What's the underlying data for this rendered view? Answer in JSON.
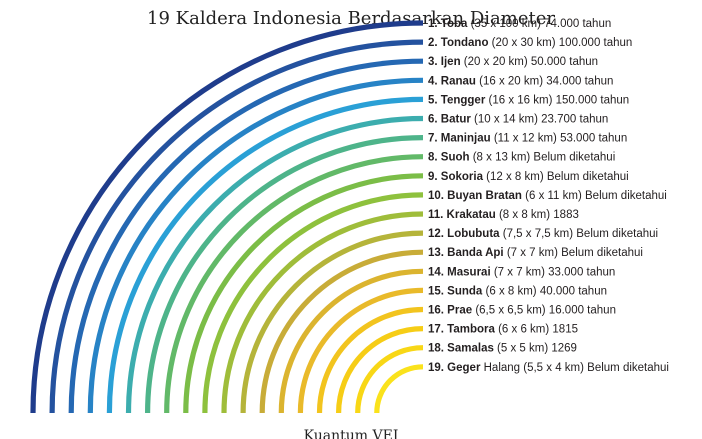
{
  "chart_data": {
    "type": "arc-bar",
    "title": "19 Kaldera Indonesia Berdasarkan Diameter",
    "caption": "Kuantum VEI",
    "series": [
      {
        "rank": "1.",
        "name": "Toba",
        "detail": " (35 x 100 km) 74.000 tahun",
        "color": "#1f3c8c"
      },
      {
        "rank": "2.",
        "name": "Tondano",
        "detail": " (20 x 30 km) 100.000 tahun",
        "color": "#24529f"
      },
      {
        "rank": "3.",
        "name": "Ijen",
        "detail": " (20 x 20 km) 50.000 tahun",
        "color": "#2568b3"
      },
      {
        "rank": "4.",
        "name": "Ranau",
        "detail": " (16 x 20 km) 34.000 tahun",
        "color": "#2783c6"
      },
      {
        "rank": "5.",
        "name": "Tengger",
        "detail": " (16 x 16 km) 150.000 tahun",
        "color": "#2aa0d6"
      },
      {
        "rank": "6.",
        "name": "Batur",
        "detail": " (10 x 14 km) 23.700 tahun",
        "color": "#3cadae"
      },
      {
        "rank": "7.",
        "name": "Maninjau",
        "detail": " (11 x 12 km) 53.000 tahun",
        "color": "#4eb48a"
      },
      {
        "rank": "8.",
        "name": "Suoh",
        "detail": " (8 x 13 km) Belum diketahui",
        "color": "#62b968"
      },
      {
        "rank": "9.",
        "name": "Sokoria",
        "detail": " (12 x 8 km) Belum diketahui",
        "color": "#7bbd47"
      },
      {
        "rank": "10.",
        "name": "Buyan Bratan",
        "detail": " (6 x 11 km) Belum diketahui",
        "color": "#8ec13d"
      },
      {
        "rank": "11.",
        "name": "Krakatau",
        "detail": " (8 x 8 km) 1883",
        "color": "#9fbd3a"
      },
      {
        "rank": "12.",
        "name": "Lobubuta",
        "detail": " (7,5 x 7,5 km) Belum diketahui",
        "color": "#b5b43a"
      },
      {
        "rank": "13.",
        "name": "Banda Api",
        "detail": " (7 x 7 km) Belum diketahui",
        "color": "#c8ac38"
      },
      {
        "rank": "14.",
        "name": "Masurai",
        "detail": " (7 x 7 km) 33.000 tahun",
        "color": "#dbb42f"
      },
      {
        "rank": "15.",
        "name": "Sunda",
        "detail": " (6 x 8 km) 40.000 tahun",
        "color": "#e9ba2a"
      },
      {
        "rank": "16.",
        "name": "Prae",
        "detail": " (6,5 x 6,5 km) 16.000 tahun",
        "color": "#f2c41e"
      },
      {
        "rank": "17.",
        "name": "Tambora",
        "detail": " (6 x 6 km) 1815",
        "color": "#f6cd16"
      },
      {
        "rank": "18.",
        "name": "Samalas",
        "detail": " (5 x 5 km) 1269",
        "color": "#f8d716"
      },
      {
        "rank": "19.",
        "name": "Geger",
        "detail": " Halang (5,5 x 4 km) Belum diketahui",
        "color": "#fae21c"
      }
    ]
  }
}
